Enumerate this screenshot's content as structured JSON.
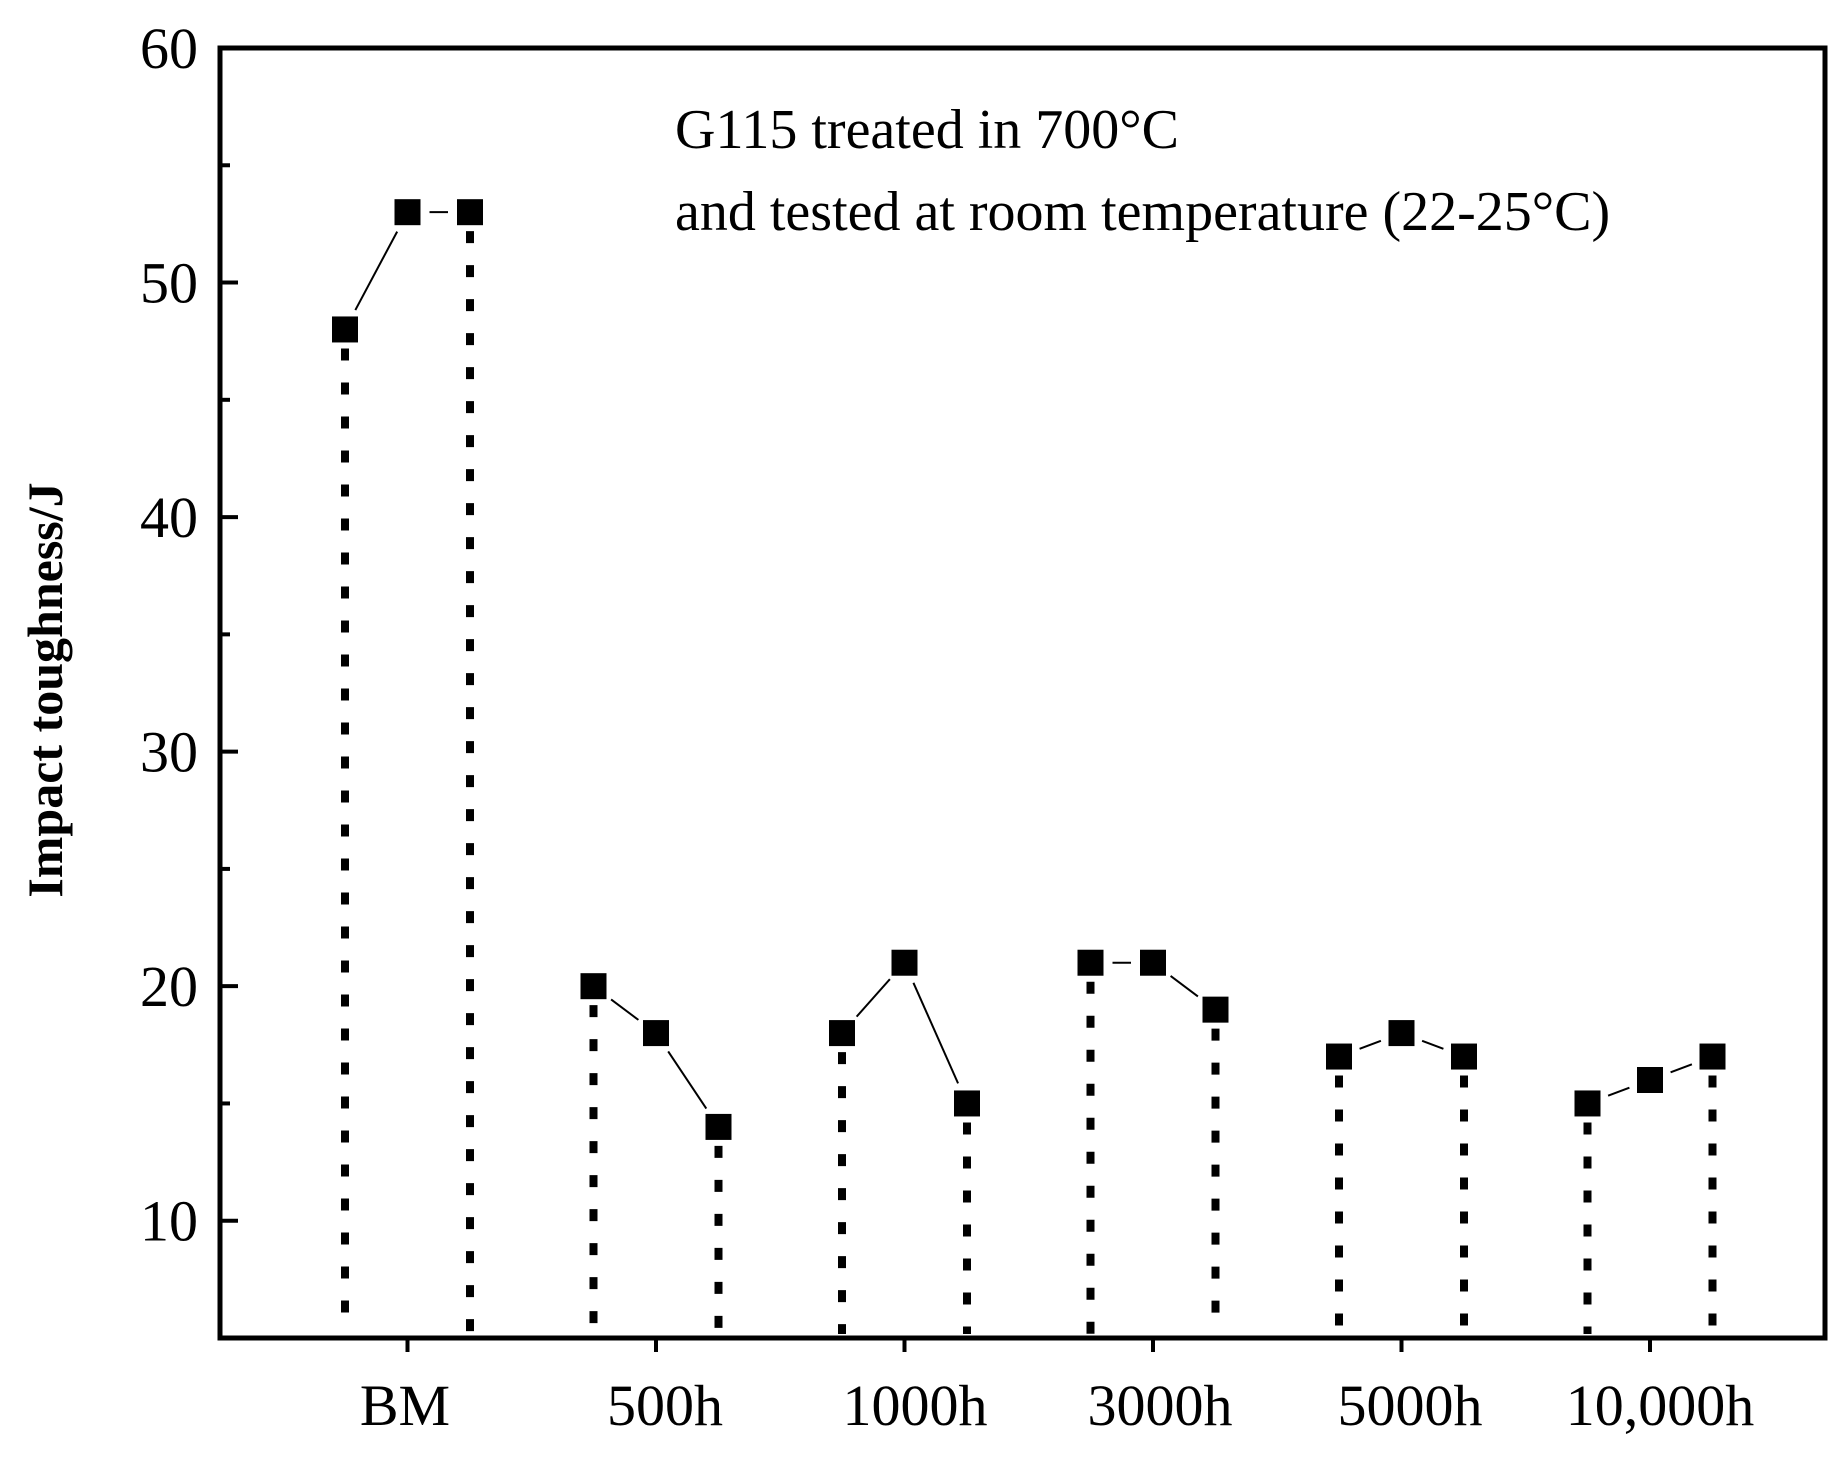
{
  "chart_data": {
    "type": "scatter",
    "title": "",
    "xlabel": "",
    "ylabel": "Impact toughness/J",
    "ylim": [
      5,
      60
    ],
    "yticks": [
      10,
      20,
      30,
      40,
      50,
      60
    ],
    "categories": [
      "BM",
      "500h",
      "1000h",
      "3000h",
      "5000h",
      "10,000h"
    ],
    "groups": [
      {
        "category": "BM",
        "values": [
          48,
          53,
          53
        ]
      },
      {
        "category": "500h",
        "values": [
          20,
          18,
          14
        ]
      },
      {
        "category": "1000h",
        "values": [
          18,
          21,
          15
        ]
      },
      {
        "category": "3000h",
        "values": [
          21,
          21,
          19
        ]
      },
      {
        "category": "5000h",
        "values": [
          17,
          18,
          17
        ]
      },
      {
        "category": "10,000h",
        "values": [
          15,
          16,
          17
        ]
      }
    ],
    "annotation": [
      "G115 treated in 700°C",
      "and tested at room temperature (22-25°C)"
    ],
    "marker_color": "#000000"
  }
}
